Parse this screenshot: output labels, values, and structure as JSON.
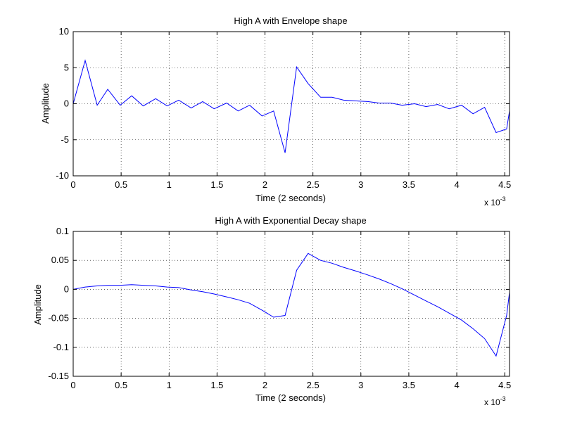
{
  "figure": {
    "background": "#ffffff",
    "axes_color": "#000000",
    "line_color": "#0000ff"
  },
  "chart_data": [
    {
      "type": "line",
      "title": "High A with Envelope shape",
      "xlabel": "Time (2 seconds)",
      "ylabel": "Amplitude",
      "x_multiplier_text": "x 10",
      "x_multiplier_exp": "-3",
      "xlim": [
        0,
        4.55
      ],
      "ylim": [
        -10,
        10
      ],
      "grid": true,
      "xticks": [
        0,
        0.5,
        1,
        1.5,
        2,
        2.5,
        3,
        3.5,
        4,
        4.5
      ],
      "xtick_labels": [
        "0",
        "0.5",
        "1",
        "1.5",
        "2",
        "2.5",
        "3",
        "3.5",
        "4",
        "4.5"
      ],
      "yticks": [
        10,
        5,
        0,
        -5,
        -10
      ],
      "ytick_labels": [
        "10",
        "5",
        "0",
        "-5",
        "-10"
      ],
      "series": [
        {
          "color": "#0000ff",
          "x": [
            0,
            0.125,
            0.25,
            0.36,
            0.49,
            0.61,
            0.73,
            0.86,
            0.98,
            1.1,
            1.23,
            1.35,
            1.47,
            1.6,
            1.72,
            1.84,
            1.97,
            2.09,
            2.21,
            2.33,
            2.45,
            2.58,
            2.7,
            2.82,
            2.94,
            3.07,
            3.19,
            3.31,
            3.43,
            3.56,
            3.68,
            3.8,
            3.92,
            4.05,
            4.17,
            4.29,
            4.41,
            4.52,
            4.55
          ],
          "y": [
            0,
            6,
            -0.2,
            2,
            -0.2,
            1.1,
            -0.3,
            0.7,
            -0.3,
            0.5,
            -0.6,
            0.3,
            -0.7,
            0.1,
            -1,
            -0.2,
            -1.7,
            -1,
            -6.8,
            5.1,
            2.8,
            0.9,
            0.9,
            0.5,
            0.4,
            0.3,
            0.1,
            0.1,
            -0.2,
            0.0,
            -0.4,
            -0.1,
            -0.7,
            -0.2,
            -1.4,
            -0.5,
            -4,
            -3.5,
            -1
          ]
        }
      ]
    },
    {
      "type": "line",
      "title": "High A with Exponential Decay shape",
      "xlabel": "Time (2 seconds)",
      "ylabel": "Amplitude",
      "x_multiplier_text": "x 10",
      "x_multiplier_exp": "-3",
      "xlim": [
        0,
        4.55
      ],
      "ylim": [
        -0.15,
        0.1
      ],
      "grid": true,
      "xticks": [
        0,
        0.5,
        1,
        1.5,
        2,
        2.5,
        3,
        3.5,
        4,
        4.5
      ],
      "xtick_labels": [
        "0",
        "0.5",
        "1",
        "1.5",
        "2",
        "2.5",
        "3",
        "3.5",
        "4",
        "4.5"
      ],
      "yticks": [
        0.1,
        0.05,
        0,
        -0.05,
        -0.1,
        -0.15
      ],
      "ytick_labels": [
        "0.1",
        "0.05",
        "0",
        "-0.05",
        "-0.1",
        "-0.15"
      ],
      "series": [
        {
          "color": "#0000ff",
          "x": [
            0,
            0.125,
            0.25,
            0.36,
            0.49,
            0.61,
            0.73,
            0.86,
            0.98,
            1.1,
            1.23,
            1.35,
            1.47,
            1.6,
            1.72,
            1.84,
            1.97,
            2.09,
            2.21,
            2.33,
            2.45,
            2.58,
            2.7,
            2.82,
            2.94,
            3.07,
            3.19,
            3.31,
            3.43,
            3.56,
            3.68,
            3.8,
            3.92,
            4.05,
            4.17,
            4.29,
            4.41,
            4.52,
            4.55
          ],
          "y": [
            0,
            0.004,
            0.006,
            0.007,
            0.007,
            0.008,
            0.007,
            0.006,
            0.004,
            0.003,
            -0.001,
            -0.004,
            -0.008,
            -0.013,
            -0.018,
            -0.024,
            -0.036,
            -0.048,
            -0.045,
            0.033,
            0.062,
            0.05,
            0.045,
            0.038,
            0.032,
            0.025,
            0.018,
            0.01,
            0.001,
            -0.01,
            -0.02,
            -0.03,
            -0.041,
            -0.053,
            -0.068,
            -0.085,
            -0.115,
            -0.045,
            -0.005
          ]
        }
      ]
    }
  ]
}
